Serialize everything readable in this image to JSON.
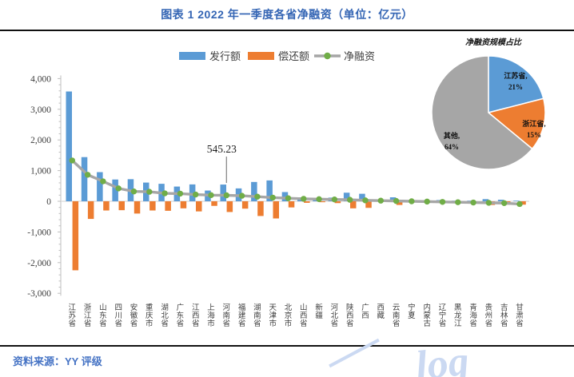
{
  "header": {
    "title": "图表 1 2022 年一季度各省净融资（单位：亿元）"
  },
  "footer": {
    "source_label": "资料来源：YY 评级",
    "watermark_text": "log"
  },
  "colors": {
    "issuance_blue": "#5B9BD5",
    "repayment_orange": "#ED7D31",
    "net_line_gray": "#A6A6A6",
    "net_marker_green": "#70AD47",
    "pie_other_gray": "#A6A6A6",
    "title_blue": "#3465B4",
    "source_blue": "#4472C4",
    "axis_text": "#404040",
    "axis_line": "#BFBFBF",
    "zero_line": "#D9D9D9"
  },
  "chart_data": [
    {
      "type": "bar",
      "subtype": "grouped bars with net line overlay",
      "title": "图表 1 2022 年一季度各省净融资（单位：亿元）",
      "unit": "亿元",
      "legend_position": "top-center",
      "grid": false,
      "ylim": [
        -3000,
        4000
      ],
      "ytick_step": 1000,
      "ytick_labels": [
        "4,000",
        "3,000",
        "2,000",
        "1,000",
        "0",
        "-1,000",
        "-2,000",
        "-3,000"
      ],
      "categories": [
        "江苏省",
        "浙江省",
        "山东省",
        "四川省",
        "安徽省",
        "重庆市",
        "湖北省",
        "广东省",
        "江西省",
        "上海市",
        "河南省",
        "福建省",
        "湖南省",
        "天津市",
        "北京市",
        "山西省",
        "新疆",
        "河北省",
        "陕西省",
        "广西",
        "西藏",
        "云南省",
        "宁夏",
        "内蒙古",
        "辽宁省",
        "黑龙江",
        "青海省",
        "贵州省",
        "吉林省",
        "甘肃省"
      ],
      "series": [
        {
          "name": "发行额",
          "type": "bar",
          "color": "#5B9BD5",
          "values": [
            3580,
            1440,
            950,
            710,
            720,
            610,
            570,
            480,
            550,
            350,
            545.23,
            420,
            630,
            680,
            300,
            130,
            100,
            120,
            280,
            245,
            30,
            130,
            30,
            20,
            40,
            20,
            20,
            70,
            50,
            20
          ]
        },
        {
          "name": "偿还额",
          "type": "bar",
          "color": "#ED7D31",
          "values": [
            -2250,
            -575,
            -300,
            -290,
            -400,
            -300,
            -310,
            -230,
            -330,
            -150,
            -350,
            -240,
            -480,
            -560,
            -200,
            -50,
            -30,
            -60,
            -230,
            -215,
            -10,
            -120,
            -30,
            -30,
            -60,
            -50,
            -60,
            -120,
            -110,
            -110
          ]
        },
        {
          "name": "净融资",
          "type": "line",
          "color": "#A6A6A6",
          "marker_color": "#70AD47",
          "values": [
            1330,
            865,
            650,
            420,
            320,
            310,
            260,
            250,
            220,
            200,
            195.23,
            180,
            150,
            120,
            100,
            80,
            70,
            60,
            50,
            30,
            20,
            10,
            0,
            -10,
            -20,
            -30,
            -40,
            -50,
            -60,
            -90
          ]
        }
      ],
      "annotation": {
        "text": "545.23",
        "category": "河南省",
        "series": "发行额",
        "value": 545.23
      }
    },
    {
      "type": "pie",
      "title": "净融资规模占比",
      "legend_position": "none",
      "slices": [
        {
          "label": "江苏省",
          "pct": 21,
          "color": "#5B9BD5"
        },
        {
          "label": "浙江省",
          "pct": 15,
          "color": "#ED7D31"
        },
        {
          "label": "其他",
          "pct": 64,
          "color": "#A6A6A6"
        }
      ],
      "start_angle_deg": 0,
      "direction": "clockwise"
    }
  ]
}
